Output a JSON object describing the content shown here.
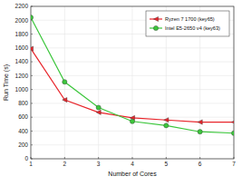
{
  "chart_data": {
    "type": "line",
    "x_label": "Number of Cores",
    "y_label": "Run Time (s)",
    "x": [
      1,
      2,
      3,
      4,
      5,
      6,
      7
    ],
    "series": [
      {
        "name": "Ryzen 7 1700 (key65)",
        "color": "#e8242a",
        "marker": "triangle-left",
        "line_style": "solid",
        "values": [
          1590,
          850,
          670,
          590,
          560,
          530,
          530
        ]
      },
      {
        "name": "Intel E5-2650 v4 (key63)",
        "color": "#3cc63c",
        "marker": "circle",
        "line_style": "solid",
        "values": [
          2040,
          1110,
          740,
          540,
          480,
          390,
          370
        ]
      }
    ],
    "xlim": [
      1,
      7
    ],
    "xticks": [
      1,
      2,
      3,
      4,
      5,
      6,
      7
    ],
    "ylim": [
      0,
      2200
    ],
    "yticks": [
      0,
      200,
      400,
      600,
      800,
      1000,
      1200,
      1400,
      1600,
      1800,
      2000,
      2200
    ],
    "grid": true,
    "legend": "upper-right"
  }
}
